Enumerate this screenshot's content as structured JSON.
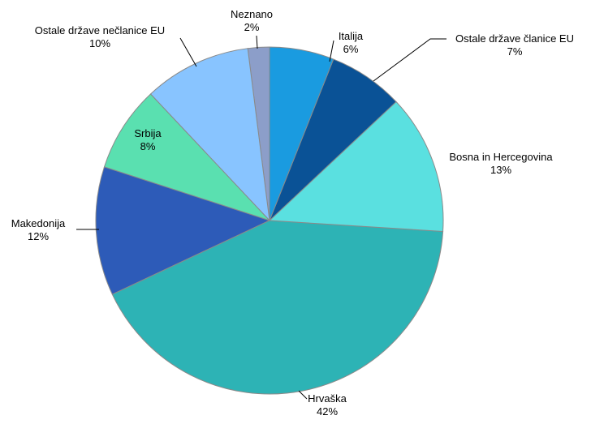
{
  "chart_data": {
    "type": "pie",
    "categories": [
      "Italija",
      "Ostale države članice EU",
      "Bosna in Hercegovina",
      "Hrvaška",
      "Makedonija",
      "Srbija",
      "Ostale države nečlanice EU",
      "Neznano"
    ],
    "values": [
      6,
      7,
      13,
      42,
      12,
      8,
      10,
      2
    ],
    "value_labels": [
      "6%",
      "7%",
      "13%",
      "42%",
      "12%",
      "8%",
      "10%",
      "2%"
    ],
    "colors": [
      "#1a9be0",
      "#0a5296",
      "#5ae0e0",
      "#2db3b5",
      "#2d5bb8",
      "#5ae0b0",
      "#88c4ff",
      "#8c9ec9"
    ]
  }
}
